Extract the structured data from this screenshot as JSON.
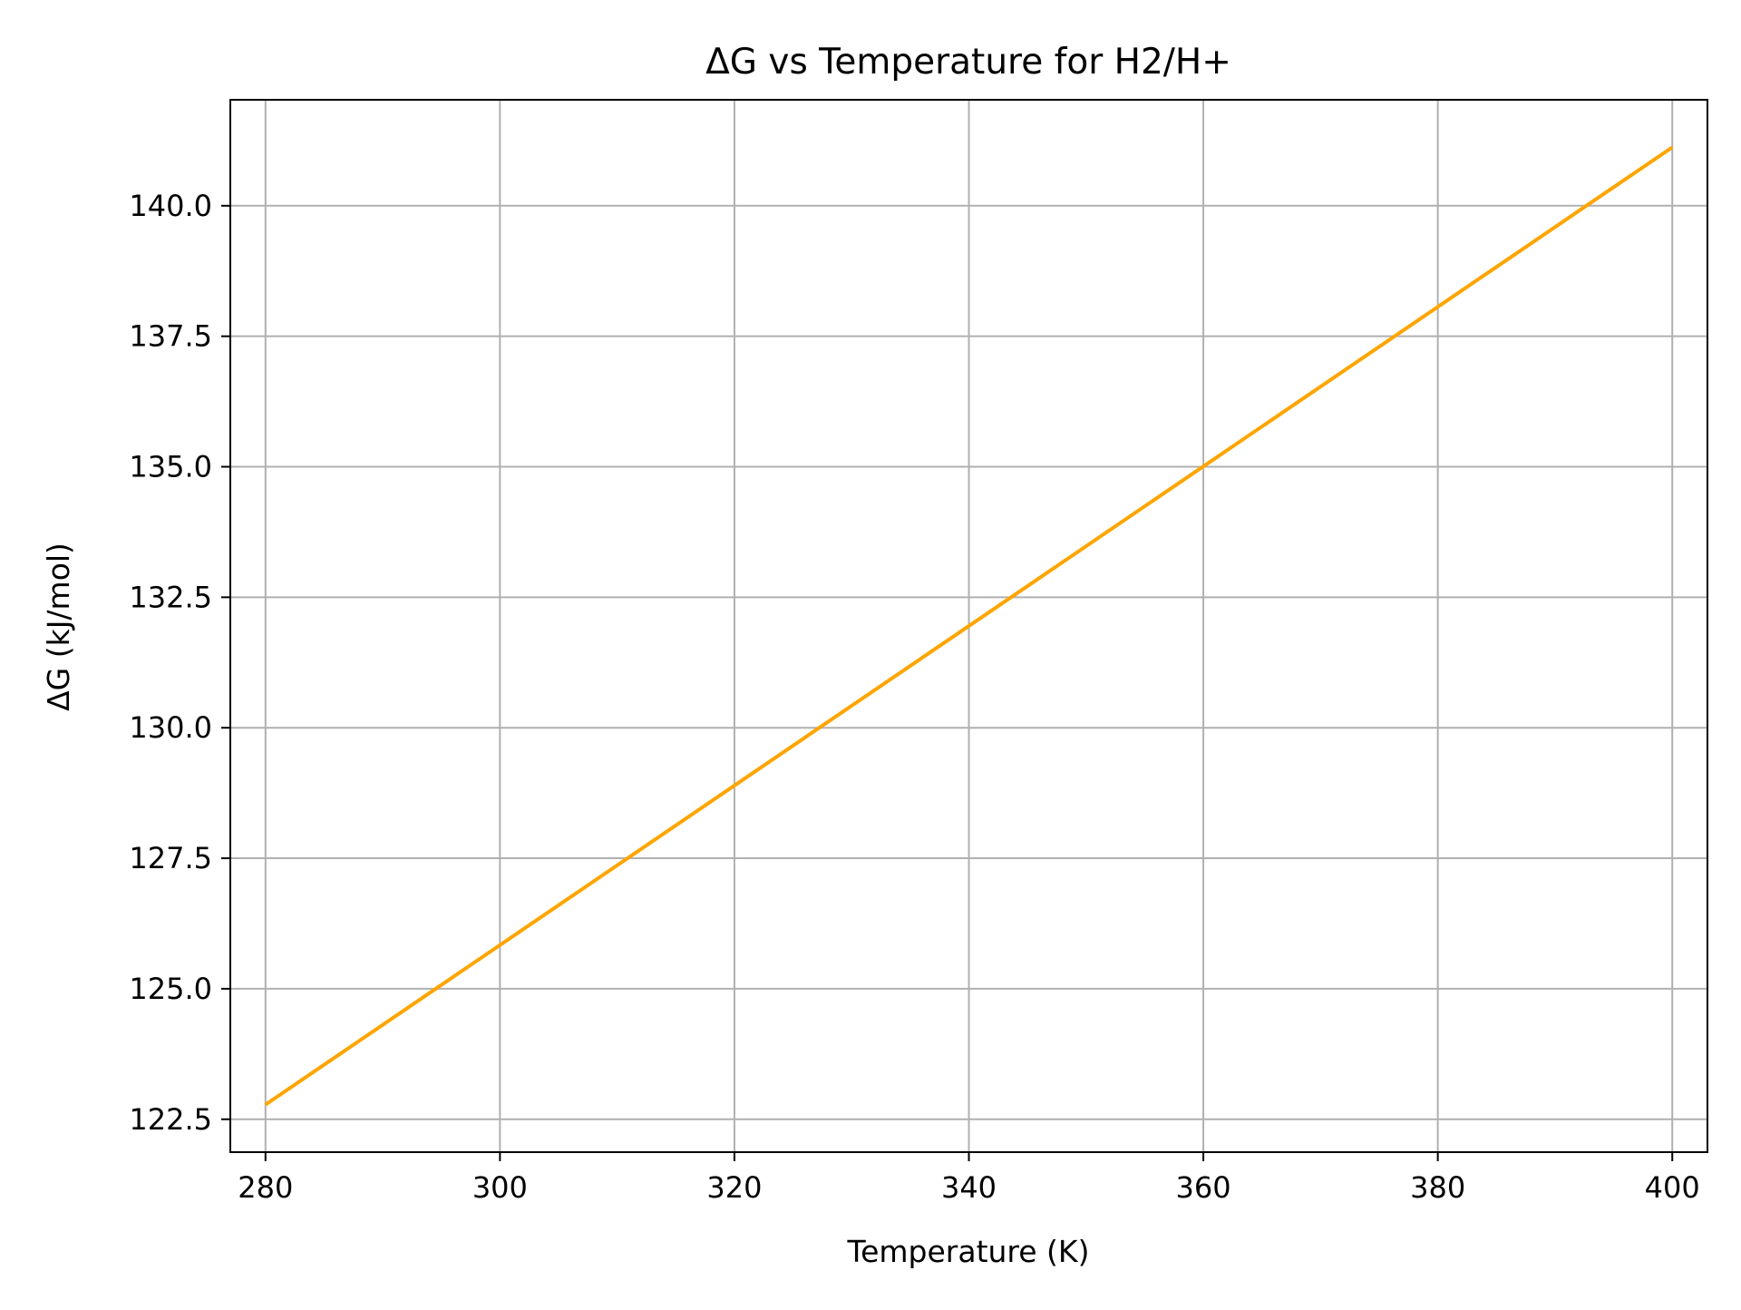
{
  "chart_data": {
    "type": "line",
    "title": "ΔG vs Temperature for H2/H+",
    "xlabel": "Temperature (K)",
    "ylabel": "ΔG (kJ/mol)",
    "xlim": [
      277,
      403
    ],
    "ylim": [
      121.87,
      142.03
    ],
    "x_ticks": [
      280,
      300,
      320,
      340,
      360,
      380,
      400
    ],
    "x_tick_labels": [
      "280",
      "300",
      "320",
      "340",
      "360",
      "380",
      "400"
    ],
    "y_ticks": [
      122.5,
      125.0,
      127.5,
      130.0,
      132.5,
      135.0,
      137.5,
      140.0
    ],
    "y_tick_labels": [
      "122.5",
      "125.0",
      "127.5",
      "130.0",
      "132.5",
      "135.0",
      "137.5",
      "140.0"
    ],
    "grid": true,
    "series": [
      {
        "x": [
          280,
          400
        ],
        "y": [
          122.78,
          141.12
        ],
        "color": "#FFA500"
      }
    ]
  }
}
